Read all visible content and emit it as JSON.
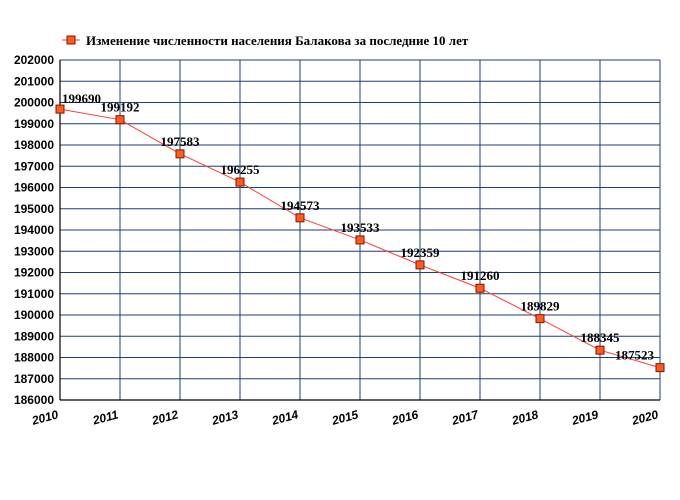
{
  "chart_data": {
    "type": "line",
    "title": "",
    "xlabel": "",
    "ylabel": "",
    "legend": {
      "position": "top-left",
      "entries": [
        "Изменение численности населения Балакова за последние 10 лет"
      ]
    },
    "x": [
      "2010",
      "2011",
      "2012",
      "2013",
      "2014",
      "2015",
      "2016",
      "2017",
      "2018",
      "2019",
      "2020"
    ],
    "series": [
      {
        "name": "Изменение численности населения Балакова за последние 10 лет",
        "values": [
          199690,
          199192,
          197583,
          196255,
          194573,
          193533,
          192359,
          191260,
          189829,
          188345,
          187523
        ]
      }
    ],
    "data_labels": [
      "199690",
      "199192",
      "197583",
      "196255",
      "194573",
      "193533",
      "192359",
      "191260",
      "189829",
      "188345",
      "187523"
    ],
    "ylim": [
      186000,
      202000
    ],
    "ytick_labels": [
      "186000",
      "187000",
      "188000",
      "189000",
      "190000",
      "191000",
      "192000",
      "193000",
      "194000",
      "195000",
      "196000",
      "197000",
      "198000",
      "199000",
      "200000",
      "201000",
      "202000"
    ],
    "grid": true,
    "colors": {
      "line": "#ff3b3b",
      "marker_fill": "#ff5a1f",
      "marker_stroke": "#7a1a00",
      "grid": "#1f3f6f",
      "axis": "#000000"
    }
  }
}
